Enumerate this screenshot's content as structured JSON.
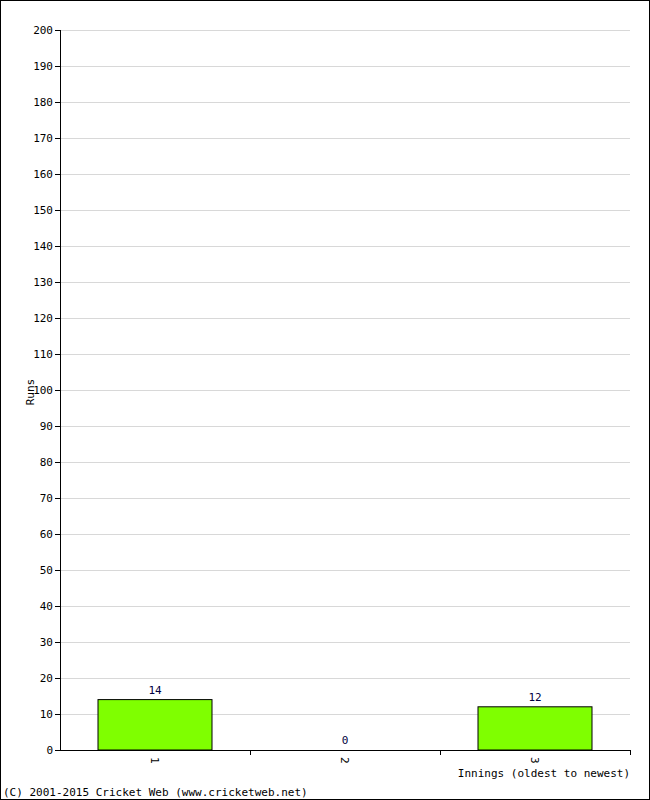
{
  "chart_data": {
    "type": "bar",
    "categories": [
      "1",
      "2",
      "3"
    ],
    "values": [
      14,
      0,
      12
    ],
    "color": "#7fff00",
    "ylim": [
      0,
      200
    ],
    "yticks": [
      0,
      10,
      20,
      30,
      40,
      50,
      60,
      70,
      80,
      90,
      100,
      110,
      120,
      130,
      140,
      150,
      160,
      170,
      180,
      190,
      200
    ],
    "grid": true,
    "data_labels": true,
    "xlabel": "Innings (oldest to newest)",
    "ylabel": "Runs",
    "annotations": [
      "(C) 2001-2015 Cricket Web (www.cricketweb.net)"
    ]
  }
}
